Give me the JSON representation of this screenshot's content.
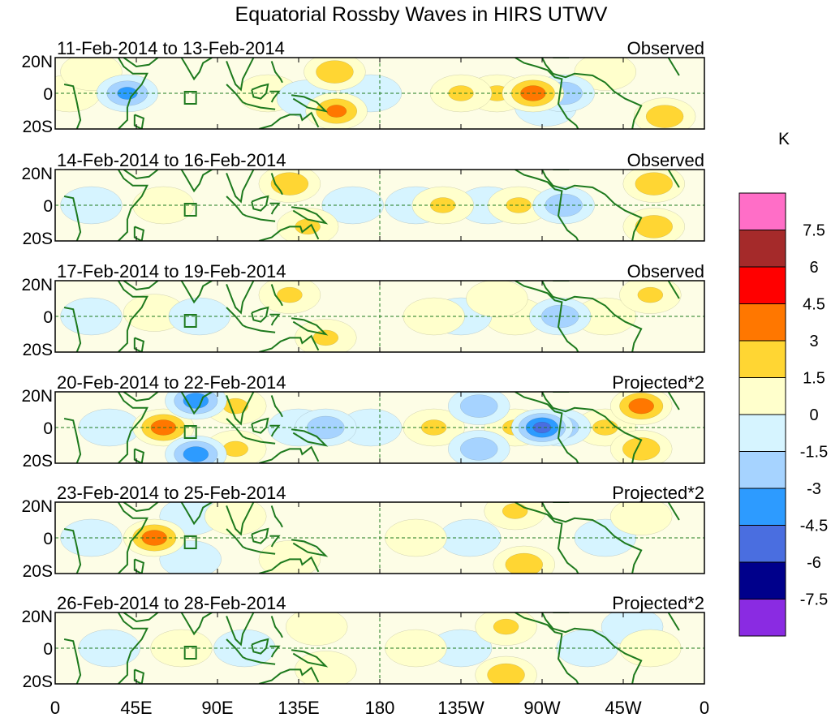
{
  "chart_data": {
    "type": "heatmap",
    "title": "Equatorial Rossby Waves in HIRS UTWV",
    "units": "K",
    "x_ticks": [
      "0",
      "45E",
      "90E",
      "135E",
      "180",
      "135W",
      "90W",
      "45W",
      "0"
    ],
    "y_ticks": [
      "20N",
      "0",
      "20S"
    ],
    "colorbar": {
      "levels": [
        "7.5",
        "6",
        "4.5",
        "3",
        "1.5",
        "0",
        "-1.5",
        "-3",
        "-4.5",
        "-6",
        "-7.5"
      ],
      "colors": [
        "#ff6ec7",
        "#a52a2a",
        "#ff0000",
        "#ff7700",
        "#ffd633",
        "#ffffcc",
        "#d6f4ff",
        "#a6d3ff",
        "#2d9bff",
        "#4a6ee0",
        "#00008b",
        "#8a2be2"
      ]
    },
    "panels": [
      {
        "period": "11-Feb-2014 to 13-Feb-2014",
        "label": "Observed",
        "blobs": [
          [
            155,
            12,
            3
          ],
          [
            156,
            -10,
            3.5
          ],
          [
            -95,
            0,
            4
          ],
          [
            -22,
            -13,
            3
          ],
          [
            -78,
            0,
            -3
          ],
          [
            -88,
            -8,
            -1.5
          ],
          [
            40,
            0,
            -3.5
          ],
          [
            -115,
            0,
            2
          ],
          [
            -135,
            0,
            2
          ],
          [
            175,
            0,
            -1.5
          ],
          [
            118,
            0,
            1.5
          ],
          [
            140,
            -3,
            -1.5
          ],
          [
            8,
            0,
            1.5
          ],
          [
            -55,
            12,
            1.5
          ],
          [
            20,
            12,
            1.5
          ]
        ]
      },
      {
        "period": "14-Feb-2014 to 16-Feb-2014",
        "label": "Observed",
        "blobs": [
          [
            130,
            12,
            3
          ],
          [
            140,
            -12,
            2
          ],
          [
            -145,
            0,
            2
          ],
          [
            -103,
            0,
            2
          ],
          [
            -78,
            0,
            -3
          ],
          [
            -28,
            12,
            3
          ],
          [
            -28,
            -12,
            3
          ],
          [
            -120,
            0,
            -1.5
          ],
          [
            165,
            0,
            -1.5
          ],
          [
            20,
            0,
            -1.5
          ],
          [
            60,
            0,
            1.5
          ],
          [
            -160,
            0,
            -1.5
          ]
        ]
      },
      {
        "period": "17-Feb-2014 to 19-Feb-2014",
        "label": "Observed",
        "blobs": [
          [
            130,
            12,
            2
          ],
          [
            150,
            -12,
            2
          ],
          [
            -80,
            0,
            -3
          ],
          [
            -105,
            0,
            1.5
          ],
          [
            -30,
            12,
            2
          ],
          [
            -55,
            0,
            1.5
          ],
          [
            55,
            2,
            1.5
          ],
          [
            80,
            0,
            -1.5
          ],
          [
            -135,
            0,
            -1.5
          ],
          [
            -115,
            10,
            1.5
          ],
          [
            20,
            0,
            -1.5
          ],
          [
            -150,
            0,
            1.5
          ]
        ]
      },
      {
        "period": "20-Feb-2014 to 22-Feb-2014",
        "label": "Projected*2",
        "blobs": [
          [
            60,
            0,
            4
          ],
          [
            78,
            15,
            -4
          ],
          [
            78,
            -15,
            -4
          ],
          [
            100,
            12,
            2
          ],
          [
            100,
            -12,
            2
          ],
          [
            135,
            0,
            -1.5
          ],
          [
            -90,
            0,
            -5
          ],
          [
            -80,
            0,
            -3
          ],
          [
            -150,
            0,
            2
          ],
          [
            -105,
            0,
            2
          ],
          [
            -35,
            12,
            4
          ],
          [
            -35,
            -12,
            3
          ],
          [
            -55,
            0,
            2
          ],
          [
            150,
            0,
            -3
          ],
          [
            -125,
            12,
            -3
          ],
          [
            -125,
            -12,
            -3
          ],
          [
            30,
            0,
            -1.5
          ],
          [
            175,
            0,
            -1.5
          ]
        ]
      },
      {
        "period": "23-Feb-2014 to 25-Feb-2014",
        "label": "Projected*2",
        "blobs": [
          [
            55,
            0,
            4
          ],
          [
            75,
            12,
            -1.5
          ],
          [
            75,
            -12,
            -1.5
          ],
          [
            100,
            12,
            1.5
          ],
          [
            130,
            -12,
            1.5
          ],
          [
            -105,
            15,
            2
          ],
          [
            -100,
            -15,
            3
          ],
          [
            -130,
            0,
            -1.5
          ],
          [
            -160,
            0,
            1.5
          ],
          [
            -55,
            0,
            -1.5
          ],
          [
            -35,
            12,
            1.5
          ],
          [
            20,
            0,
            -1.5
          ]
        ]
      },
      {
        "period": "26-Feb-2014 to 28-Feb-2014",
        "label": "Projected*2",
        "blobs": [
          [
            -110,
            12,
            2
          ],
          [
            -110,
            -15,
            3
          ],
          [
            -65,
            0,
            -1.5
          ],
          [
            -135,
            0,
            -1.5
          ],
          [
            70,
            0,
            1.5
          ],
          [
            105,
            0,
            -1.5
          ],
          [
            145,
            12,
            1.5
          ],
          [
            -40,
            12,
            -1.5
          ],
          [
            -30,
            0,
            1.5
          ],
          [
            30,
            0,
            -1.5
          ],
          [
            -160,
            0,
            1.5
          ],
          [
            150,
            -12,
            1.5
          ]
        ]
      }
    ]
  }
}
